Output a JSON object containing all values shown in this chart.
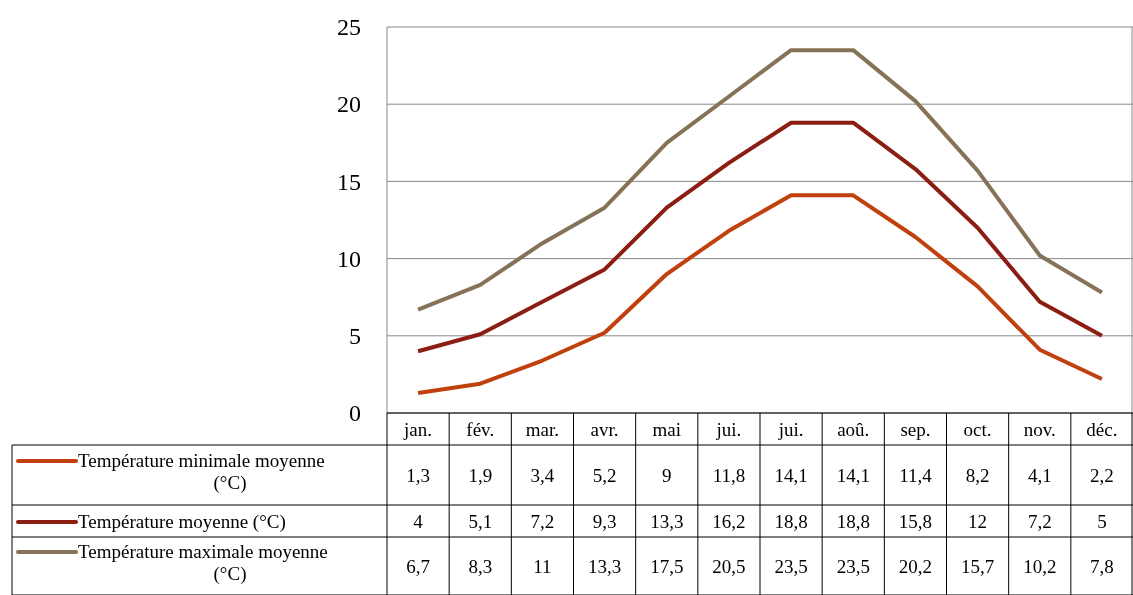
{
  "chart_data": {
    "type": "line",
    "categories": [
      "jan.",
      "fév.",
      "mar.",
      "avr.",
      "mai",
      "jui.",
      "jui.",
      "aoû.",
      "sep.",
      "oct.",
      "nov.",
      "déc."
    ],
    "series": [
      {
        "name": "Température minimale moyenne (°C)",
        "color": "#c0400e",
        "values": [
          1.3,
          1.9,
          3.4,
          5.2,
          9,
          11.8,
          14.1,
          14.1,
          11.4,
          8.2,
          4.1,
          2.2
        ],
        "value_labels": [
          "1,3",
          "1,9",
          "3,4",
          "5,2",
          "9",
          "11,8",
          "14,1",
          "14,1",
          "11,4",
          "8,2",
          "4,1",
          "2,2"
        ]
      },
      {
        "name": "Température moyenne (°C)",
        "color": "#8b1d12",
        "values": [
          4,
          5.1,
          7.2,
          9.3,
          13.3,
          16.2,
          18.8,
          18.8,
          15.8,
          12,
          7.2,
          5
        ],
        "value_labels": [
          "4",
          "5,1",
          "7,2",
          "9,3",
          "13,3",
          "16,2",
          "18,8",
          "18,8",
          "15,8",
          "12",
          "7,2",
          "5"
        ]
      },
      {
        "name": "Température maximale moyenne (°C)",
        "color": "#867257",
        "values": [
          6.7,
          8.3,
          11,
          13.3,
          17.5,
          20.5,
          23.5,
          23.5,
          20.2,
          15.7,
          10.2,
          7.8
        ],
        "value_labels": [
          "6,7",
          "8,3",
          "11",
          "13,3",
          "17,5",
          "20,5",
          "23,5",
          "23,5",
          "20,2",
          "15,7",
          "10,2",
          "7,8"
        ]
      }
    ],
    "ylim": [
      0,
      25
    ],
    "yticks": [
      0,
      5,
      10,
      15,
      20,
      25
    ],
    "grid": "y",
    "legend": "bottom left",
    "marker": "none",
    "line_style": "solid"
  }
}
